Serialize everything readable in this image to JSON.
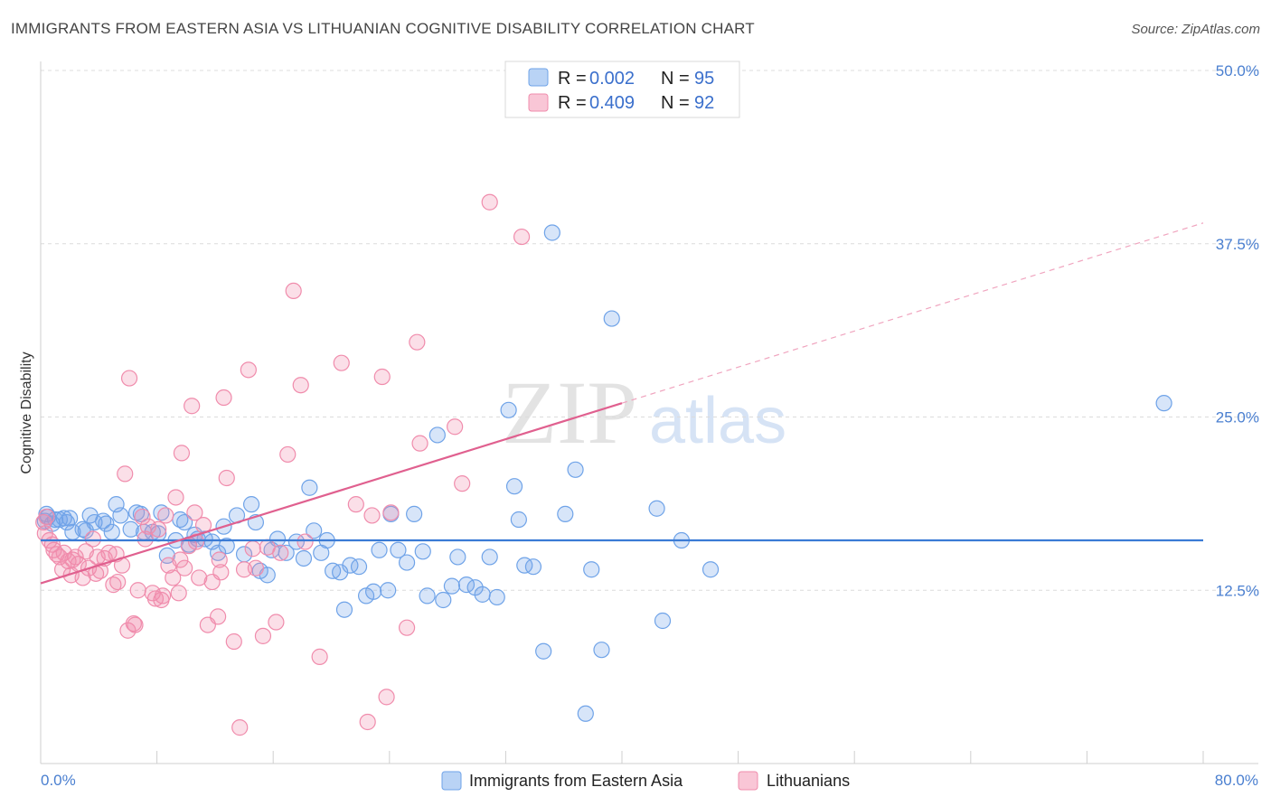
{
  "header": {
    "title": "IMMIGRANTS FROM EASTERN ASIA VS LITHUANIAN COGNITIVE DISABILITY CORRELATION CHART",
    "source": "Source: ZipAtlas.com"
  },
  "watermark": {
    "zip": "ZIP",
    "atlas": "atlas"
  },
  "legend": {
    "r_label": "R =",
    "n_label": "N =",
    "rows": [
      {
        "name": "Immigrants from Eastern Asia",
        "r": "0.002",
        "n": "95",
        "color": "#6fa3e8"
      },
      {
        "name": "Lithuanians",
        "r": "0.409",
        "n": "92",
        "color": "#f08cac"
      }
    ]
  },
  "chart_data": {
    "type": "scatter",
    "title": "IMMIGRANTS FROM EASTERN ASIA VS LITHUANIAN COGNITIVE DISABILITY CORRELATION CHART",
    "xlabel": "",
    "ylabel": "Cognitive Disability",
    "xlim": [
      0,
      80
    ],
    "ylim": [
      0,
      50
    ],
    "x_tick_labels": [
      "0.0%",
      "80.0%"
    ],
    "y_ticks": [
      12.5,
      25.0,
      37.5,
      50.0
    ],
    "y_tick_labels": [
      "12.5%",
      "25.0%",
      "37.5%",
      "50.0%"
    ],
    "grid": "horizontal dashed",
    "legend_position": "top-center",
    "series": [
      {
        "name": "Immigrants from Eastern Asia",
        "color": "#6fa3e8",
        "trend": {
          "x": [
            0,
            80
          ],
          "y": [
            16.1,
            16.1
          ],
          "dashed_after": null
        },
        "points": [
          [
            0.3,
            17.5
          ],
          [
            0.5,
            17.8
          ],
          [
            0.8,
            17.3
          ],
          [
            1.0,
            17.6
          ],
          [
            1.3,
            17.6
          ],
          [
            1.6,
            17.7
          ],
          [
            2.0,
            17.7
          ],
          [
            2.2,
            16.7
          ],
          [
            2.9,
            16.9
          ],
          [
            3.4,
            17.9
          ],
          [
            3.7,
            17.4
          ],
          [
            4.3,
            17.5
          ],
          [
            4.5,
            17.3
          ],
          [
            4.9,
            16.7
          ],
          [
            5.2,
            18.7
          ],
          [
            5.5,
            17.9
          ],
          [
            6.2,
            16.9
          ],
          [
            6.6,
            18.1
          ],
          [
            7.1,
            16.7
          ],
          [
            7.7,
            16.7
          ],
          [
            8.1,
            16.6
          ],
          [
            8.3,
            18.1
          ],
          [
            8.7,
            15.0
          ],
          [
            9.3,
            16.1
          ],
          [
            9.6,
            17.6
          ],
          [
            9.9,
            17.4
          ],
          [
            10.2,
            15.8
          ],
          [
            10.8,
            16.2
          ],
          [
            11.3,
            16.2
          ],
          [
            11.8,
            16.0
          ],
          [
            12.2,
            15.2
          ],
          [
            12.6,
            17.1
          ],
          [
            12.8,
            15.7
          ],
          [
            13.5,
            17.9
          ],
          [
            14.0,
            15.1
          ],
          [
            14.5,
            18.7
          ],
          [
            14.8,
            17.4
          ],
          [
            15.1,
            13.9
          ],
          [
            15.6,
            13.6
          ],
          [
            15.9,
            15.4
          ],
          [
            16.3,
            16.2
          ],
          [
            16.9,
            15.2
          ],
          [
            17.6,
            16.0
          ],
          [
            18.1,
            14.8
          ],
          [
            18.5,
            19.9
          ],
          [
            18.8,
            16.8
          ],
          [
            19.3,
            15.2
          ],
          [
            19.7,
            16.1
          ],
          [
            20.1,
            13.9
          ],
          [
            20.6,
            13.8
          ],
          [
            20.9,
            11.1
          ],
          [
            21.3,
            14.3
          ],
          [
            21.9,
            14.2
          ],
          [
            22.4,
            12.1
          ],
          [
            22.9,
            12.4
          ],
          [
            23.3,
            15.4
          ],
          [
            23.9,
            12.5
          ],
          [
            24.1,
            18.0
          ],
          [
            24.6,
            15.4
          ],
          [
            25.2,
            14.5
          ],
          [
            25.7,
            18.0
          ],
          [
            26.3,
            15.3
          ],
          [
            26.6,
            12.1
          ],
          [
            27.3,
            23.7
          ],
          [
            27.7,
            11.8
          ],
          [
            28.3,
            12.8
          ],
          [
            28.7,
            14.9
          ],
          [
            29.3,
            12.9
          ],
          [
            29.9,
            12.7
          ],
          [
            30.4,
            12.2
          ],
          [
            30.9,
            14.9
          ],
          [
            31.4,
            12.0
          ],
          [
            32.2,
            25.5
          ],
          [
            32.6,
            20.0
          ],
          [
            32.9,
            17.6
          ],
          [
            33.3,
            14.3
          ],
          [
            33.9,
            14.2
          ],
          [
            34.6,
            8.1
          ],
          [
            35.2,
            38.3
          ],
          [
            36.1,
            18.0
          ],
          [
            36.8,
            21.2
          ],
          [
            37.5,
            3.6
          ],
          [
            37.9,
            14.0
          ],
          [
            38.6,
            8.2
          ],
          [
            39.3,
            32.1
          ],
          [
            42.4,
            18.4
          ],
          [
            42.8,
            10.3
          ],
          [
            44.1,
            16.1
          ],
          [
            46.1,
            14.0
          ],
          [
            77.3,
            26.0
          ],
          [
            0.4,
            18.0
          ],
          [
            1.8,
            17.4
          ],
          [
            3.1,
            16.8
          ],
          [
            6.9,
            18.0
          ],
          [
            10.6,
            16.5
          ]
        ]
      },
      {
        "name": "Lithuanians",
        "color": "#f08cac",
        "trend": {
          "x": [
            0,
            80
          ],
          "y": [
            13.0,
            39.0
          ],
          "dashed_after": 40
        },
        "points": [
          [
            0.2,
            17.4
          ],
          [
            0.4,
            17.8
          ],
          [
            0.6,
            16.1
          ],
          [
            0.8,
            15.8
          ],
          [
            1.1,
            15.1
          ],
          [
            1.3,
            14.9
          ],
          [
            1.6,
            15.2
          ],
          [
            1.9,
            14.6
          ],
          [
            2.1,
            13.6
          ],
          [
            2.4,
            14.9
          ],
          [
            2.6,
            14.4
          ],
          [
            2.9,
            13.4
          ],
          [
            3.1,
            15.3
          ],
          [
            3.3,
            14.1
          ],
          [
            3.6,
            16.2
          ],
          [
            3.9,
            14.9
          ],
          [
            4.1,
            13.9
          ],
          [
            4.4,
            14.8
          ],
          [
            4.7,
            15.2
          ],
          [
            5.0,
            12.9
          ],
          [
            5.3,
            13.1
          ],
          [
            5.6,
            14.3
          ],
          [
            5.8,
            20.9
          ],
          [
            6.0,
            9.6
          ],
          [
            6.1,
            27.8
          ],
          [
            6.4,
            10.1
          ],
          [
            6.7,
            12.5
          ],
          [
            7.0,
            17.8
          ],
          [
            7.2,
            16.2
          ],
          [
            7.4,
            17.1
          ],
          [
            7.7,
            12.3
          ],
          [
            7.9,
            11.9
          ],
          [
            8.1,
            16.9
          ],
          [
            8.4,
            12.1
          ],
          [
            8.6,
            17.9
          ],
          [
            8.8,
            14.3
          ],
          [
            9.1,
            13.4
          ],
          [
            9.3,
            19.2
          ],
          [
            9.5,
            12.3
          ],
          [
            9.7,
            22.4
          ],
          [
            9.9,
            14.1
          ],
          [
            10.2,
            15.7
          ],
          [
            10.4,
            25.8
          ],
          [
            10.6,
            18.1
          ],
          [
            10.9,
            13.4
          ],
          [
            11.2,
            17.2
          ],
          [
            11.5,
            10.0
          ],
          [
            11.8,
            13.1
          ],
          [
            12.2,
            10.6
          ],
          [
            12.3,
            14.7
          ],
          [
            12.6,
            26.4
          ],
          [
            12.8,
            20.6
          ],
          [
            13.3,
            8.8
          ],
          [
            13.7,
            2.6
          ],
          [
            14.0,
            14.0
          ],
          [
            14.3,
            28.4
          ],
          [
            14.8,
            14.1
          ],
          [
            15.3,
            9.2
          ],
          [
            15.6,
            15.6
          ],
          [
            16.2,
            10.2
          ],
          [
            17.0,
            22.3
          ],
          [
            17.4,
            34.1
          ],
          [
            17.9,
            27.3
          ],
          [
            18.2,
            16.0
          ],
          [
            19.2,
            7.7
          ],
          [
            20.7,
            28.9
          ],
          [
            21.7,
            18.7
          ],
          [
            22.5,
            3.0
          ],
          [
            22.8,
            17.9
          ],
          [
            23.5,
            27.9
          ],
          [
            23.8,
            4.8
          ],
          [
            24.1,
            18.1
          ],
          [
            25.2,
            9.8
          ],
          [
            25.9,
            30.4
          ],
          [
            26.1,
            23.1
          ],
          [
            28.5,
            24.3
          ],
          [
            29.0,
            20.2
          ],
          [
            30.9,
            40.5
          ],
          [
            33.1,
            38.0
          ],
          [
            0.3,
            16.6
          ],
          [
            0.9,
            15.4
          ],
          [
            1.5,
            14.0
          ],
          [
            2.2,
            14.7
          ],
          [
            3.8,
            13.7
          ],
          [
            5.2,
            15.1
          ],
          [
            6.5,
            10.0
          ],
          [
            8.3,
            11.8
          ],
          [
            9.6,
            14.7
          ],
          [
            10.7,
            16.0
          ],
          [
            12.4,
            13.8
          ],
          [
            14.6,
            15.5
          ],
          [
            16.5,
            15.2
          ]
        ]
      }
    ]
  }
}
